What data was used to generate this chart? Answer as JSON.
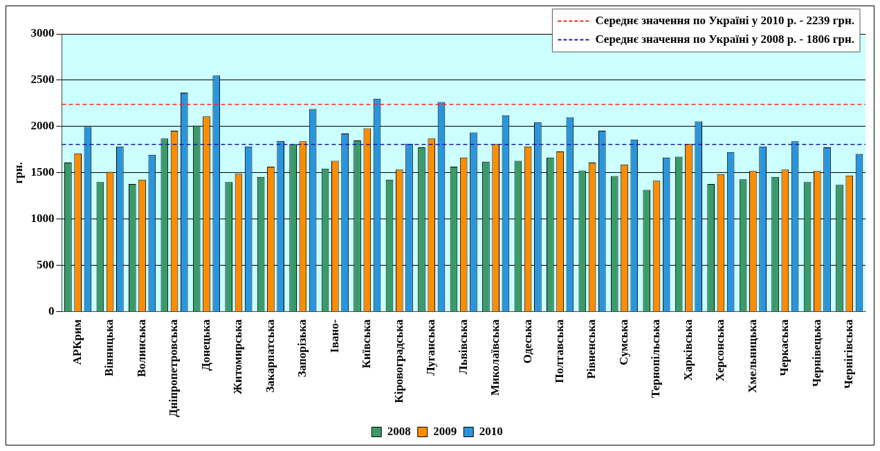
{
  "chart_data": {
    "type": "bar",
    "ylabel": "грн.",
    "categories": [
      "АРКрим",
      "Вінницька",
      "Волинська",
      "Дніпропетровська",
      "Донецька",
      "Житомирська",
      "Закарпатська",
      "Запорізька",
      "Івано-",
      "Київська",
      "Кіровоградська",
      "Луганська",
      "Львівська",
      "Миколаївська",
      "Одеська",
      "Полтавська",
      "Рівненська",
      "Сумська",
      "Тернопільська",
      "Харківська",
      "Херсонська",
      "Хмельницька",
      "Черкаська",
      "Чернівецька",
      "Чернігівська"
    ],
    "series": [
      {
        "name": "2008",
        "color": "#3a9b6a",
        "values": [
          1610,
          1400,
          1380,
          1870,
          2010,
          1400,
          1455,
          1810,
          1545,
          1850,
          1425,
          1775,
          1565,
          1620,
          1630,
          1665,
          1525,
          1465,
          1315,
          1675,
          1380,
          1430,
          1455,
          1400,
          1370
        ]
      },
      {
        "name": "2009",
        "color": "#ff8c00",
        "values": [
          1710,
          1510,
          1425,
          1955,
          2110,
          1490,
          1565,
          1840,
          1630,
          1980,
          1535,
          1870,
          1665,
          1810,
          1785,
          1730,
          1610,
          1590,
          1415,
          1810,
          1485,
          1520,
          1535,
          1520,
          1470
        ]
      },
      {
        "name": "2010",
        "color": "#2a95dc",
        "values": [
          1995,
          1785,
          1695,
          2365,
          2550,
          1785,
          1845,
          2190,
          1925,
          2300,
          1815,
          2265,
          1935,
          2120,
          2045,
          2100,
          1955,
          1860,
          1665,
          2055,
          1725,
          1785,
          1840,
          1775,
          1705
        ]
      }
    ],
    "ylim": [
      0,
      3000
    ],
    "yticks": [
      0,
      500,
      1000,
      1500,
      2000,
      2500,
      3000
    ],
    "grid": "y",
    "legend": "bottom",
    "ref_lines": [
      {
        "axis": "y",
        "value": 2239,
        "label": "Середнє значення по Україні у 2010 р. - 2239 грн.",
        "color": "#ff2020",
        "line_style": "dashed"
      },
      {
        "axis": "y",
        "value": 1806,
        "label": "Середнє значення по Україні у 2008 р. - 1806 грн.",
        "color": "#1a1aa0",
        "line_style": "dashed"
      }
    ]
  }
}
